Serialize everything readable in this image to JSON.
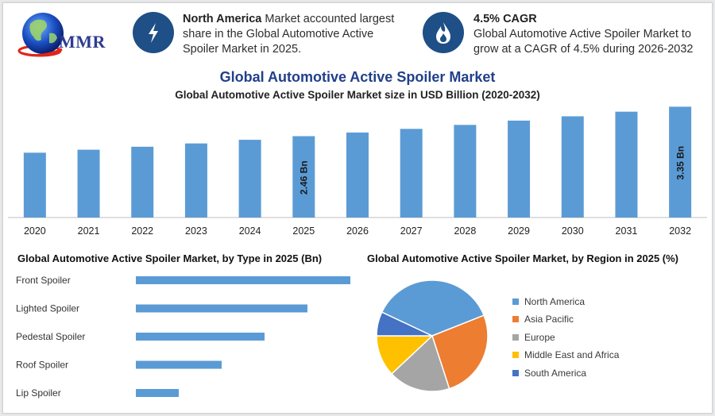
{
  "logo": {
    "text": "MMR"
  },
  "highlights": [
    {
      "icon": "lightning-bolt-icon",
      "bold": "North America",
      "text": " Market accounted largest share in the Global Automotive Active Spoiler Market in 2025."
    },
    {
      "icon": "flame-drop-icon",
      "bold": "4.5% CAGR",
      "text": "Global Automotive Active Spoiler Market to grow at a CAGR of 4.5% during 2026-2032"
    }
  ],
  "title": "Global Automotive Active Spoiler Market",
  "colors": {
    "bar": "#5b9bd5",
    "title": "#213f8a",
    "icon_bg": "#1e4f86",
    "axis": "#bfbfbf"
  },
  "chart_data": [
    {
      "type": "bar",
      "title": "Global Automotive Active Spoiler Market size in USD Billion (2020-2032)",
      "categories": [
        "2020",
        "2021",
        "2022",
        "2023",
        "2024",
        "2025",
        "2026",
        "2027",
        "2028",
        "2029",
        "2030",
        "2031",
        "2032"
      ],
      "values": [
        1.96,
        2.05,
        2.14,
        2.24,
        2.35,
        2.46,
        2.57,
        2.68,
        2.8,
        2.93,
        3.06,
        3.2,
        3.35
      ],
      "data_labels": {
        "5": "2.46 Bn",
        "12": "3.35 Bn"
      },
      "ylim": [
        0,
        3.6
      ],
      "grid": false
    },
    {
      "type": "bar",
      "orientation": "horizontal",
      "title": "Global Automotive Active Spoiler Market, by Type in 2025 (Bn)",
      "categories": [
        "Front Spoiler",
        "Lighted Spoiler",
        "Pedestal Spoiler",
        "Roof Spoiler",
        "Lip Spoiler"
      ],
      "values": [
        1.0,
        0.8,
        0.6,
        0.4,
        0.2
      ],
      "xlim": [
        0,
        1.0
      ],
      "grid": false
    },
    {
      "type": "pie",
      "title": "Global Automotive Active Spoiler Market, by Region in 2025 (%)",
      "categories": [
        "North America",
        "Asia Pacific",
        "Europe",
        "Middle East and Africa",
        "South America"
      ],
      "values": [
        37,
        26,
        18,
        12,
        7
      ],
      "colors": [
        "#5b9bd5",
        "#ed7d31",
        "#a5a5a5",
        "#ffc000",
        "#4472c4"
      ],
      "legend": "right"
    }
  ]
}
